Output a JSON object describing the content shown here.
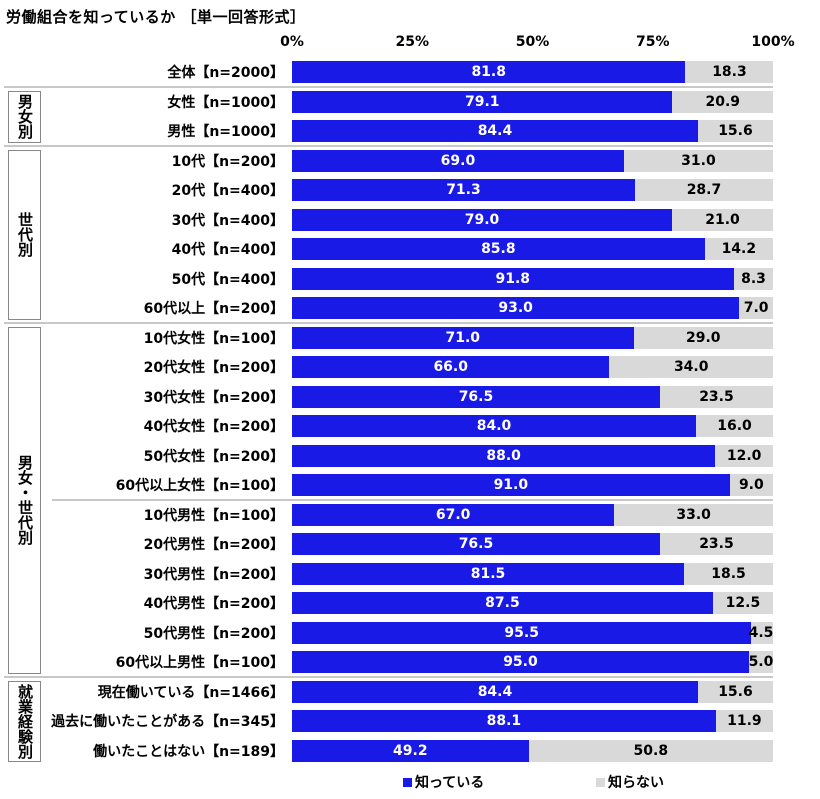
{
  "chart_data": {
    "type": "bar",
    "stacked": true,
    "orientation": "horizontal",
    "title": "労働組合を知っているか ［単一回答形式］",
    "xlim": [
      0,
      100
    ],
    "x_ticks": [
      "0%",
      "25%",
      "50%",
      "75%",
      "100%"
    ],
    "categories": [
      "全体【n=2000】",
      "女性【n=1000】",
      "男性【n=1000】",
      "10代【n=200】",
      "20代【n=400】",
      "30代【n=400】",
      "40代【n=400】",
      "50代【n=400】",
      "60代以上【n=200】",
      "10代女性【n=100】",
      "20代女性【n=200】",
      "30代女性【n=200】",
      "40代女性【n=200】",
      "50代女性【n=200】",
      "60代以上女性【n=100】",
      "10代男性【n=100】",
      "20代男性【n=200】",
      "30代男性【n=200】",
      "40代男性【n=200】",
      "50代男性【n=200】",
      "60代以上男性【n=100】",
      "現在働いている【n=1466】",
      "過去に働いたことがある【n=345】",
      "働いたことはない【n=189】"
    ],
    "series": [
      {
        "name": "知っている",
        "color": "#1a1ae6",
        "values": [
          81.8,
          79.1,
          84.4,
          69.0,
          71.3,
          79.0,
          85.8,
          91.8,
          93.0,
          71.0,
          66.0,
          76.5,
          84.0,
          88.0,
          91.0,
          67.0,
          76.5,
          81.5,
          87.5,
          95.5,
          95.0,
          84.4,
          88.1,
          49.2
        ]
      },
      {
        "name": "知らない",
        "color": "#d9d9d9",
        "values": [
          18.3,
          20.9,
          15.6,
          31.0,
          28.7,
          21.0,
          14.2,
          8.3,
          7.0,
          29.0,
          34.0,
          23.5,
          16.0,
          12.0,
          9.0,
          33.0,
          23.5,
          18.5,
          12.5,
          4.5,
          5.0,
          15.6,
          11.9,
          50.8
        ]
      }
    ],
    "groups": [
      {
        "label": "男女別",
        "from": 1,
        "to": 2
      },
      {
        "label": "世代別",
        "from": 3,
        "to": 8
      },
      {
        "label": "男女・世代別",
        "from": 9,
        "to": 20
      },
      {
        "label": "就業経験別",
        "from": 21,
        "to": 23
      }
    ],
    "legend": "bottom"
  }
}
